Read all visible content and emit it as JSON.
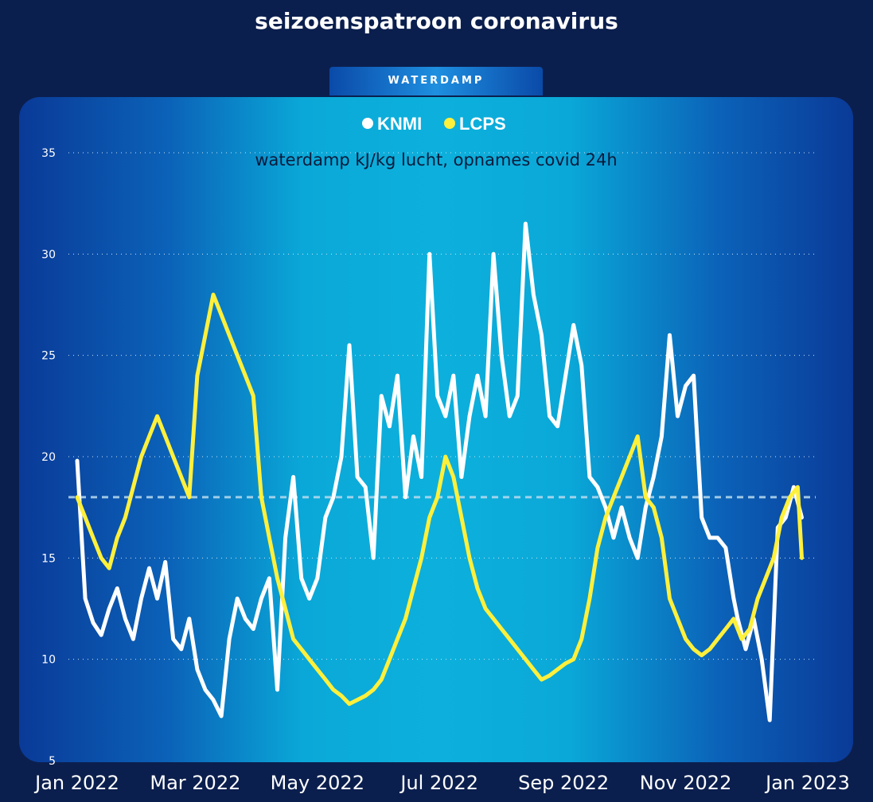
{
  "title": "seizoenspatroon coronavirus",
  "tab_label": "WATERDAMP",
  "colors": {
    "background": "#0b1f4e",
    "knmi": "#ffffff",
    "lcps": "#fff03c",
    "reference_line": "#b9dcf0"
  },
  "chart_data": {
    "type": "line",
    "subtitle": "waterdamp kJ/kg lucht, opnames covid 24h",
    "ylim": [
      5,
      35
    ],
    "yticks": [
      5,
      10,
      15,
      20,
      25,
      30,
      35
    ],
    "xticks": [
      {
        "label": "Jan 2022",
        "x": 0
      },
      {
        "label": "Mar 2022",
        "x": 59
      },
      {
        "label": "May 2022",
        "x": 120
      },
      {
        "label": "Jul 2022",
        "x": 181
      },
      {
        "label": "Sep 2022",
        "x": 243
      },
      {
        "label": "Nov 2022",
        "x": 304
      },
      {
        "label": "Jan 2023",
        "x": 365
      }
    ],
    "reference_value": 18,
    "grid": true,
    "legend_position": "top-center",
    "series": [
      {
        "name": "KNMI",
        "x": [
          0,
          4,
          8,
          12,
          16,
          20,
          24,
          28,
          32,
          36,
          40,
          44,
          48,
          52,
          56,
          60,
          64,
          68,
          72,
          76,
          80,
          84,
          88,
          92,
          96,
          100,
          104,
          108,
          112,
          116,
          120,
          124,
          128,
          132,
          136,
          140,
          144,
          148,
          152,
          156,
          160,
          164,
          168,
          172,
          176,
          180,
          184,
          188,
          192,
          196,
          200,
          204,
          208,
          212,
          216,
          220,
          224,
          228,
          232,
          236,
          240,
          244,
          248,
          252,
          256,
          260,
          264,
          268,
          272,
          276,
          280,
          284,
          288,
          292,
          296,
          300,
          304,
          308,
          312,
          316,
          320,
          324,
          328,
          330,
          334,
          338,
          342,
          346,
          350,
          354,
          358,
          362
        ],
        "values": [
          19.8,
          13.0,
          11.8,
          11.2,
          12.5,
          13.5,
          12.0,
          11.0,
          13.0,
          14.5,
          13.0,
          14.8,
          11.0,
          10.5,
          12.0,
          9.5,
          8.5,
          8.0,
          7.2,
          11.0,
          13.0,
          12.0,
          11.5,
          13.0,
          14.0,
          8.5,
          16.0,
          19.0,
          14.0,
          13.0,
          14.0,
          17.0,
          18.0,
          20.0,
          25.5,
          19.0,
          18.5,
          15.0,
          23.0,
          21.5,
          24.0,
          18.0,
          21.0,
          19.0,
          30.0,
          23.0,
          22.0,
          24.0,
          19.0,
          22.0,
          24.0,
          22.0,
          30.0,
          25.0,
          22.0,
          23.0,
          31.5,
          28.0,
          26.0,
          22.0,
          21.5,
          24.0,
          26.5,
          24.5,
          19.0,
          18.5,
          17.5,
          16.0,
          17.5,
          16.0,
          15.0,
          17.5,
          19.0,
          21.0,
          26.0,
          22.0,
          23.5,
          24.0,
          17.0,
          16.0,
          16.0,
          15.5,
          13.0,
          12.0,
          10.5,
          12.0,
          10.0,
          7.0,
          16.5,
          17.0,
          18.5,
          17.0
        ]
      },
      {
        "name": "LCPS",
        "x": [
          0,
          4,
          8,
          12,
          16,
          20,
          24,
          28,
          32,
          36,
          40,
          44,
          48,
          52,
          56,
          60,
          64,
          68,
          72,
          76,
          80,
          84,
          88,
          92,
          96,
          100,
          104,
          108,
          112,
          116,
          120,
          124,
          128,
          132,
          136,
          140,
          144,
          148,
          152,
          156,
          160,
          164,
          168,
          172,
          176,
          180,
          184,
          188,
          192,
          196,
          200,
          204,
          208,
          212,
          216,
          220,
          224,
          228,
          232,
          236,
          240,
          244,
          248,
          252,
          256,
          260,
          264,
          268,
          272,
          276,
          280,
          284,
          288,
          292,
          296,
          300,
          304,
          308,
          312,
          316,
          320,
          324,
          328,
          332,
          336,
          340,
          344,
          348,
          352,
          356,
          360,
          362
        ],
        "values": [
          18.0,
          17.0,
          16.0,
          15.0,
          14.5,
          16.0,
          17.0,
          18.5,
          20.0,
          21.0,
          22.0,
          21.0,
          20.0,
          19.0,
          18.0,
          24.0,
          26.0,
          28.0,
          27.0,
          26.0,
          25.0,
          24.0,
          23.0,
          18.0,
          16.0,
          14.0,
          12.5,
          11.0,
          10.5,
          10.0,
          9.5,
          9.0,
          8.5,
          8.2,
          7.8,
          8.0,
          8.2,
          8.5,
          9.0,
          10.0,
          11.0,
          12.0,
          13.5,
          15.0,
          17.0,
          18.0,
          20.0,
          19.0,
          17.0,
          15.0,
          13.5,
          12.5,
          12.0,
          11.5,
          11.0,
          10.5,
          10.0,
          9.5,
          9.0,
          9.2,
          9.5,
          9.8,
          10.0,
          11.0,
          13.0,
          15.5,
          17.0,
          18.0,
          19.0,
          20.0,
          21.0,
          18.0,
          17.5,
          16.0,
          13.0,
          12.0,
          11.0,
          10.5,
          10.2,
          10.5,
          11.0,
          11.5,
          12.0,
          11.0,
          11.5,
          13.0,
          14.0,
          15.0,
          17.0,
          18.0,
          18.5,
          15.0
        ]
      }
    ]
  }
}
